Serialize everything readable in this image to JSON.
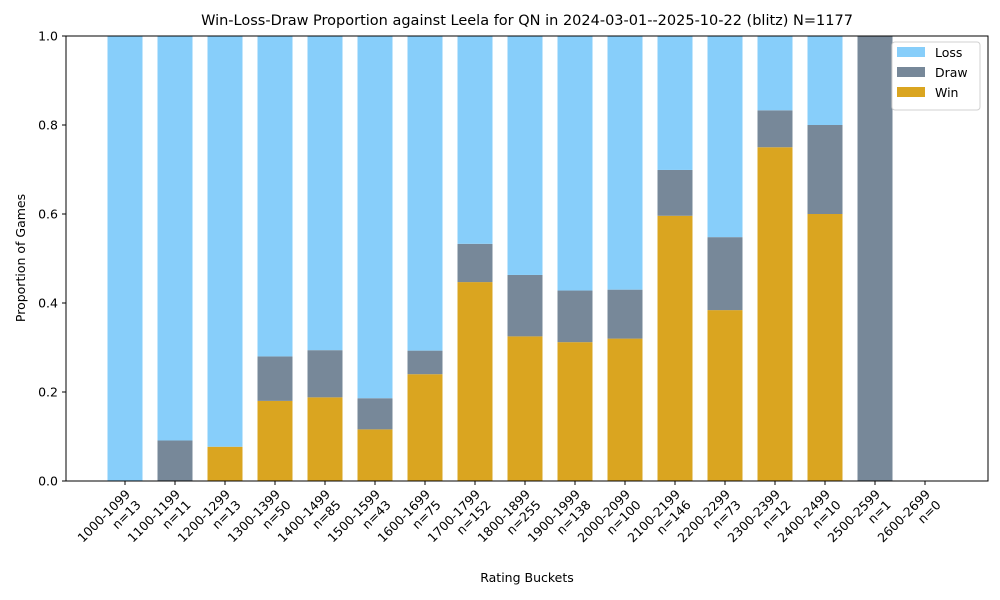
{
  "chart_data": {
    "type": "bar",
    "stacked": true,
    "title": "Win-Loss-Draw Proportion against Leela for QN in 2024-03-01--2025-10-22 (blitz) N=1177",
    "xlabel": "Rating Buckets",
    "ylabel": "Proportion of Games",
    "ylim": [
      0,
      1.0
    ],
    "yticks": [
      "0.0",
      "0.2",
      "0.4",
      "0.6",
      "0.8",
      "1.0"
    ],
    "ytick_values": [
      0,
      0.2,
      0.4,
      0.6,
      0.8,
      1.0
    ],
    "grid": false,
    "legend_position": "top-right",
    "categories": [
      "1000-1099",
      "1100-1199",
      "1200-1299",
      "1300-1399",
      "1400-1499",
      "1500-1599",
      "1600-1699",
      "1700-1799",
      "1800-1899",
      "1900-1999",
      "2000-2099",
      "2100-2199",
      "2200-2299",
      "2300-2399",
      "2400-2499",
      "2500-2599",
      "2600-2699"
    ],
    "counts": [
      "n=13",
      "n=11",
      "n=13",
      "n=50",
      "n=85",
      "n=43",
      "n=75",
      "n=152",
      "n=255",
      "n=138",
      "n=100",
      "n=146",
      "n=73",
      "n=12",
      "n=10",
      "n=1",
      "n=0"
    ],
    "series": [
      {
        "name": "Win",
        "color": "#DAA520",
        "values": [
          0.0,
          0.0,
          0.077,
          0.18,
          0.188,
          0.116,
          0.24,
          0.447,
          0.325,
          0.312,
          0.32,
          0.596,
          0.384,
          0.75,
          0.6,
          0.0,
          0.0
        ]
      },
      {
        "name": "Draw",
        "color": "#778899",
        "values": [
          0.0,
          0.091,
          0.0,
          0.1,
          0.106,
          0.07,
          0.053,
          0.086,
          0.138,
          0.116,
          0.11,
          0.103,
          0.164,
          0.083,
          0.2,
          1.0,
          0.0
        ]
      },
      {
        "name": "Loss",
        "color": "#87CEFA",
        "values": [
          1.0,
          0.909,
          0.923,
          0.72,
          0.706,
          0.814,
          0.707,
          0.467,
          0.537,
          0.572,
          0.57,
          0.301,
          0.452,
          0.167,
          0.2,
          0.0,
          0.0
        ]
      }
    ],
    "legend_order": [
      "Loss",
      "Draw",
      "Win"
    ]
  }
}
